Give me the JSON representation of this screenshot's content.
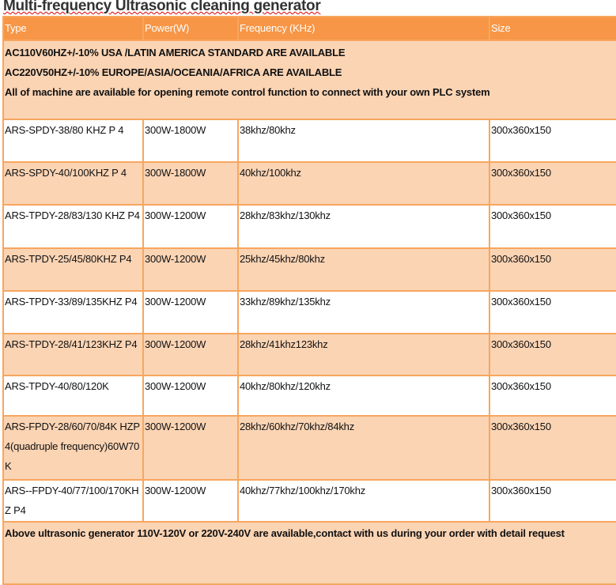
{
  "title": "Multi-frequency Ultrasonic cleaning generator",
  "headers": [
    "Type",
    "Power(W)",
    "Frequency (KHz)",
    "Size"
  ],
  "notice": [
    "AC110V60HZ+/-10% USA /LATIN AMERICA  STANDARD ARE AVAILABLE",
    "AC220V50HZ+/-10% EUROPE/ASIA/OCEANIA/AFRICA ARE AVAILABLE",
    "All of machine are available for opening remote control function to connect with your own PLC system"
  ],
  "rows": [
    {
      "type": "ARS-SPDY-38/80 KHZ P 4",
      "power": "300W-1800W",
      "freq": "38khz/80khz",
      "size": "300x360x150"
    },
    {
      "type": "ARS-SPDY-40/100KHZ P 4",
      "power": "300W-1800W",
      "freq": "40khz/100khz",
      "size": "300x360x150"
    },
    {
      "type": "ARS-TPDY-28/83/130 KHZ P4",
      "power": "300W-1200W",
      "freq": "28khz/83khz/130khz",
      "size": "300x360x150"
    },
    {
      "type": "ARS-TPDY-25/45/80KHZ P4",
      "power": "300W-1200W",
      "freq": "25khz/45khz/80khz",
      "size": "300x360x150"
    },
    {
      "type": "ARS-TPDY-33/89/135KHZ P4",
      "power": "300W-1200W",
      "freq": "33khz/89khz/135khz",
      "size": "300x360x150"
    },
    {
      "type": "ARS-TPDY-28/41/123KHZ P4",
      "power": "300W-1200W",
      "freq": "28khz/41khz123khz",
      "size": "300x360x150"
    },
    {
      "type": "ARS-TPDY-40/80/120K",
      "power": "300W-1200W",
      "freq": "40khz/80khz/120khz",
      "size": "300x360x150"
    },
    {
      "type": "ARS-FPDY-28/60/70/84K HZP4(quadruple frequency)60W70K",
      "power": "300W-1200W",
      "freq": "28khz/60khz/70khz/84khz",
      "size": "300x360x150"
    },
    {
      "type": "ARS--FPDY-40/77/100/170KHZ P4",
      "power": "300W-1200W",
      "freq": "40khz/77khz/100khz/170khz",
      "size": "300x360x150"
    }
  ],
  "footer": "Above ultrasonic generator 110V-120V or 220V-240V are available,contact with us during your order with detail request",
  "colors": {
    "header": "#f79646",
    "peach": "#fbd4b4",
    "border": "#f7a65f"
  }
}
